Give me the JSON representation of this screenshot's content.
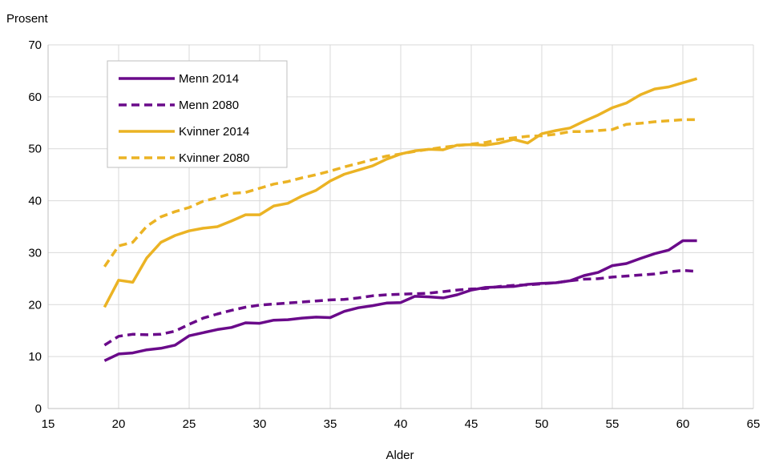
{
  "chart_data": {
    "type": "line",
    "ylabel": "Prosent",
    "xlabel": "Alder",
    "xlim": [
      15,
      65
    ],
    "ylim": [
      0,
      70
    ],
    "xticks": [
      15,
      20,
      25,
      30,
      35,
      40,
      45,
      50,
      55,
      60,
      65
    ],
    "yticks": [
      0,
      10,
      20,
      30,
      40,
      50,
      60,
      70
    ],
    "grid": "both",
    "legend_position": "top-left",
    "x": [
      19,
      20,
      21,
      22,
      23,
      24,
      25,
      26,
      27,
      28,
      29,
      30,
      31,
      32,
      33,
      34,
      35,
      36,
      37,
      38,
      39,
      40,
      41,
      42,
      43,
      44,
      45,
      46,
      47,
      48,
      49,
      50,
      51,
      52,
      53,
      54,
      55,
      56,
      57,
      58,
      59,
      60,
      61
    ],
    "series": [
      {
        "name": "Menn 2014",
        "color": "#6a0a8a",
        "dash": "solid",
        "values": [
          9.2,
          10.5,
          10.7,
          11.3,
          11.6,
          12.2,
          14.0,
          14.6,
          15.2,
          15.6,
          16.5,
          16.4,
          17.0,
          17.1,
          17.4,
          17.6,
          17.5,
          18.7,
          19.4,
          19.8,
          20.3,
          20.4,
          21.6,
          21.5,
          21.3,
          21.9,
          22.8,
          23.3,
          23.4,
          23.5,
          23.9,
          24.1,
          24.2,
          24.6,
          25.6,
          26.2,
          27.5,
          27.9,
          28.9,
          29.8,
          30.5,
          32.3,
          32.3
        ]
      },
      {
        "name": "Menn 2080",
        "color": "#6a0a8a",
        "dash": "dashed",
        "values": [
          12.2,
          13.9,
          14.3,
          14.2,
          14.3,
          14.9,
          16.2,
          17.4,
          18.2,
          18.9,
          19.5,
          19.9,
          20.1,
          20.3,
          20.5,
          20.7,
          20.9,
          21.0,
          21.3,
          21.7,
          21.9,
          22.0,
          22.1,
          22.2,
          22.5,
          22.8,
          23.0,
          23.1,
          23.5,
          23.7,
          23.8,
          24.0,
          24.2,
          24.6,
          24.9,
          25.0,
          25.3,
          25.5,
          25.7,
          25.9,
          26.3,
          26.6,
          26.4
        ]
      },
      {
        "name": "Kvinner 2014",
        "color": "#ebb324",
        "dash": "solid",
        "values": [
          19.5,
          24.7,
          24.3,
          29.0,
          32.0,
          33.3,
          34.2,
          34.7,
          35.0,
          36.1,
          37.3,
          37.3,
          39.0,
          39.5,
          40.9,
          42.0,
          43.8,
          45.1,
          45.9,
          46.7,
          48.0,
          49.0,
          49.6,
          49.9,
          49.8,
          50.7,
          50.8,
          50.7,
          51.1,
          51.8,
          51.1,
          52.9,
          53.5,
          54.0,
          55.3,
          56.5,
          57.9,
          58.8,
          60.4,
          61.5,
          61.9,
          62.7,
          63.5
        ]
      },
      {
        "name": "Kvinner 2080",
        "color": "#ebb324",
        "dash": "dashed",
        "values": [
          27.3,
          31.3,
          32.0,
          35.1,
          36.9,
          37.9,
          38.7,
          39.9,
          40.6,
          41.4,
          41.6,
          42.4,
          43.2,
          43.7,
          44.4,
          45.0,
          45.7,
          46.5,
          47.2,
          47.9,
          48.6,
          49.0,
          49.5,
          49.9,
          50.3,
          50.6,
          50.9,
          51.2,
          51.8,
          52.1,
          52.4,
          52.5,
          52.8,
          53.3,
          53.3,
          53.5,
          53.7,
          54.7,
          54.9,
          55.2,
          55.4,
          55.6,
          55.6
        ]
      }
    ]
  }
}
